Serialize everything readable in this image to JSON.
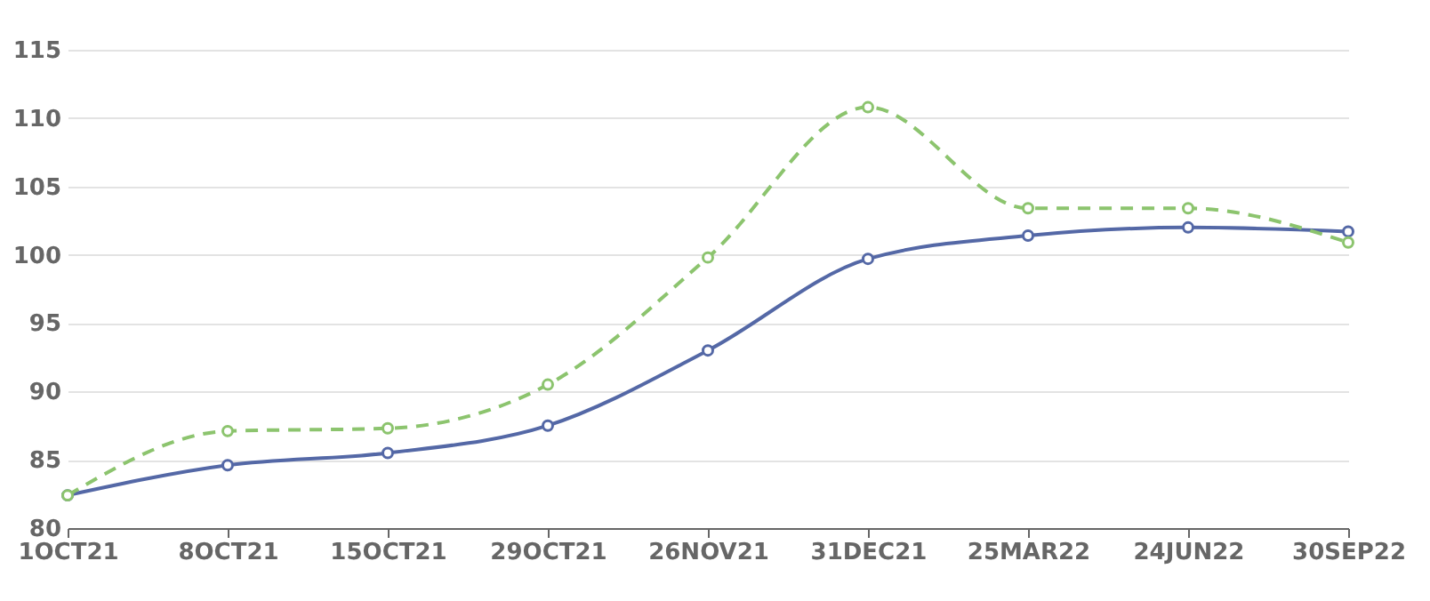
{
  "chart_data": {
    "type": "line",
    "categories": [
      "1OCT21",
      "8OCT21",
      "15OCT21",
      "29OCT21",
      "26NOV21",
      "31DEC21",
      "25MAR22",
      "24JUN22",
      "30SEP22"
    ],
    "series": [
      {
        "color": "#5468a6",
        "line_style": "solid",
        "values": [
          82.4,
          84.6,
          85.5,
          87.5,
          93.0,
          99.7,
          101.4,
          102.0,
          101.7
        ]
      },
      {
        "color": "#8cc46e",
        "line_style": "dashed",
        "values": [
          82.4,
          87.1,
          87.3,
          90.5,
          99.8,
          110.8,
          103.4,
          103.4,
          100.9
        ]
      }
    ],
    "ylim": [
      80,
      115
    ],
    "yticks": [
      80,
      85,
      90,
      95,
      100,
      105,
      110,
      115
    ],
    "grid": "y",
    "marker": "circle"
  }
}
